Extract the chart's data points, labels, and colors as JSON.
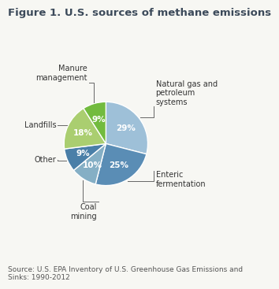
{
  "title": "Figure 1. U.S. sources of methane emissions",
  "source_text": "Source: U.S. EPA Inventory of U.S. Greenhouse Gas Emissions and\nSinks: 1990-2012",
  "slices": [
    {
      "label": "Natural gas and\npetroleum\nsystems",
      "pct": 29,
      "color": "#9ec0d8"
    },
    {
      "label": "Enteric\nfermentation",
      "pct": 25,
      "color": "#5a8db5"
    },
    {
      "label": "Coal\nmining",
      "pct": 10,
      "color": "#85afc5"
    },
    {
      "label": "Other",
      "pct": 9,
      "color": "#4a7fa8"
    },
    {
      "label": "Landfills",
      "pct": 18,
      "color": "#aace70"
    },
    {
      "label": "Manure\nmanagement",
      "pct": 9,
      "color": "#72bb3e"
    }
  ],
  "title_color": "#3c4a5a",
  "title_fontsize": 9.5,
  "label_fontsize": 7.0,
  "pct_fontsize": 7.5,
  "source_fontsize": 6.5,
  "background_color": "#f7f7f3",
  "line_color": "#666666"
}
